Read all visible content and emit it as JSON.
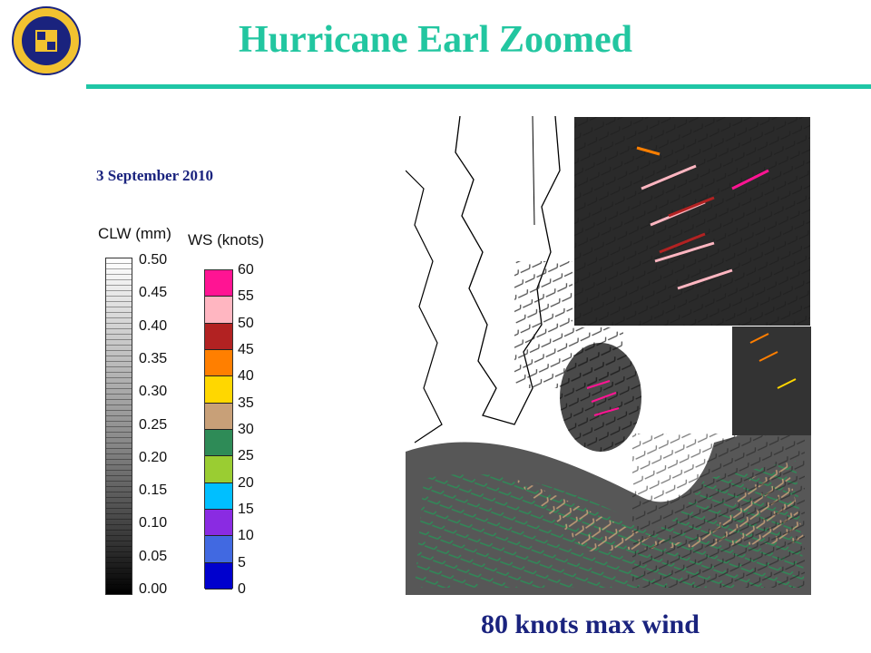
{
  "header": {
    "title": "Hurricane Earl Zoomed"
  },
  "date": "3 September 2010",
  "clw_legend": {
    "title": "CLW (mm)",
    "ticks": [
      "0.50",
      "0.45",
      "0.40",
      "0.35",
      "0.30",
      "0.25",
      "0.20",
      "0.15",
      "0.10",
      "0.05",
      "0.00"
    ]
  },
  "ws_legend": {
    "title": "WS (knots)",
    "ticks": [
      "60",
      "55",
      "50",
      "45",
      "40",
      "35",
      "30",
      "25",
      "20",
      "15",
      "10",
      "5",
      "0"
    ],
    "colors": [
      "#ff1493",
      "#ffb6c1",
      "#b22222",
      "#ff7f00",
      "#ffd700",
      "#c8a078",
      "#2e8b57",
      "#9acd32",
      "#00bfff",
      "#8a2be2",
      "#4169e1",
      "#0000cd"
    ]
  },
  "caption": "80 knots max wind"
}
